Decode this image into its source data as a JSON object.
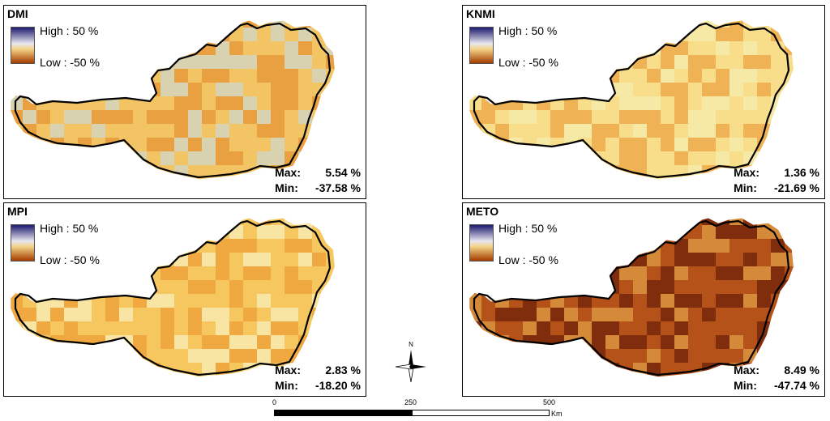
{
  "legend": {
    "high_label": "High : 50 %",
    "low_label": "Low : -50 %",
    "high_color": "#1c1a6e",
    "low_color": "#a43d00"
  },
  "panels": [
    {
      "id": "dmi",
      "title": "DMI",
      "max_label": "Max:",
      "max_value": "5.54 %",
      "min_label": "Min:",
      "min_value": "-37.58 %",
      "fill_color": "#f2c463",
      "accent_color": "#e8a040",
      "alt_color": "#d9d2b0"
    },
    {
      "id": "knmi",
      "title": "KNMI",
      "max_label": "Max:",
      "max_value": "1.36 %",
      "min_label": "Min:",
      "min_value": "-21.69 %",
      "fill_color": "#f8de8a",
      "accent_color": "#efb356",
      "alt_color": "#f6e9a6"
    },
    {
      "id": "mpi",
      "title": "MPI",
      "max_label": "Max:",
      "max_value": "2.83 %",
      "min_label": "Min:",
      "min_value": "-18.20 %",
      "fill_color": "#f5c75e",
      "accent_color": "#f0a840",
      "alt_color": "#f8e5a3"
    },
    {
      "id": "meto",
      "title": "METO",
      "max_label": "Max:",
      "max_value": "8.49 %",
      "min_label": "Min:",
      "min_value": "-47.74 %",
      "fill_color": "#b4521a",
      "accent_color": "#7f2d0c",
      "alt_color": "#d58a3a"
    }
  ],
  "scalebar": {
    "tick_0": "0",
    "tick_250": "250",
    "tick_500": "500",
    "unit": "Km"
  },
  "north_arrow": {
    "label": "N"
  }
}
